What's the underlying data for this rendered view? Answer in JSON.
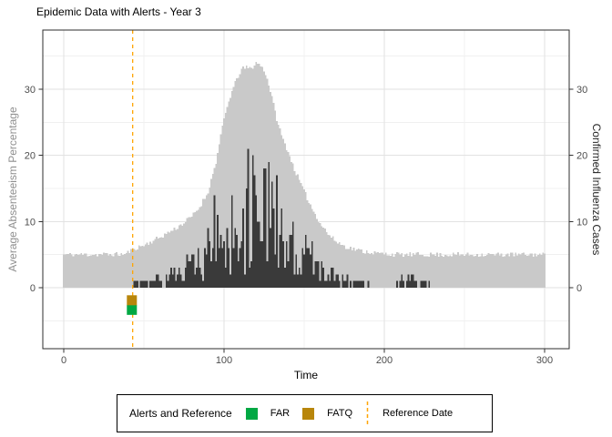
{
  "title": "Epidemic Data with Alerts - Year 3",
  "axes": {
    "x": {
      "title": "Time",
      "major_ticks": [
        0,
        100,
        200,
        300
      ],
      "minor_ticks": [
        50,
        150,
        250
      ]
    },
    "y_left": {
      "title": "Average Absenteeism Percentage",
      "major_ticks": [
        0,
        10,
        20,
        30
      ],
      "minor_ticks": [
        -5,
        5,
        15,
        25,
        35
      ],
      "title_color": "#8f8f8f"
    },
    "y_right": {
      "title": "Confirmed Influenza Cases",
      "major_ticks": [
        0,
        10,
        20,
        30
      ],
      "title_color": "#262626"
    }
  },
  "legend": {
    "title": "Alerts and Reference",
    "items": [
      {
        "label": "FAR",
        "key": "square",
        "color": "#00a843"
      },
      {
        "label": "FATQ",
        "key": "square",
        "color": "#b8860b"
      },
      {
        "label": "Reference Date",
        "key": "dashed-line",
        "color": "#ffa500"
      }
    ]
  },
  "chart_data": {
    "type": "bar",
    "title": "Epidemic Data with Alerts - Year 3",
    "xlabel": "Time",
    "ylabel_left": "Average Absenteeism Percentage",
    "ylabel_right": "Confirmed Influenza Cases",
    "x_range": [
      0,
      300
    ],
    "y_axis_ticks": [
      0,
      10,
      20,
      30
    ],
    "grid": true,
    "legend_position": "bottom",
    "seed": 11,
    "series": [
      {
        "name": "Average Absenteeism Percentage",
        "axis": "left",
        "style": "area-bars",
        "color": "#c9c9c9",
        "baseline_value": 5,
        "peak_value": 34,
        "peak_time": 120,
        "noise_amplitude": 0.35,
        "envelope": [
          [
            0,
            5
          ],
          [
            38,
            5.05
          ],
          [
            44,
            5.9
          ],
          [
            50,
            6.4
          ],
          [
            55,
            7.0
          ],
          [
            60,
            7.6
          ],
          [
            65,
            8.3
          ],
          [
            70,
            9.0
          ],
          [
            75,
            9.8
          ],
          [
            80,
            10.8
          ],
          [
            85,
            12.2
          ],
          [
            90,
            14.5
          ],
          [
            95,
            19
          ],
          [
            100,
            25.5
          ],
          [
            104,
            29
          ],
          [
            108,
            31.5
          ],
          [
            111,
            33
          ],
          [
            114,
            33.3
          ],
          [
            117,
            33.1
          ],
          [
            120,
            34
          ],
          [
            123,
            33.6
          ],
          [
            126,
            32.4
          ],
          [
            129,
            29.8
          ],
          [
            133,
            25.5
          ],
          [
            136,
            23
          ],
          [
            140,
            20.5
          ],
          [
            145,
            17.3
          ],
          [
            150,
            14.6
          ],
          [
            155,
            12
          ],
          [
            160,
            9.8
          ],
          [
            165,
            8.1
          ],
          [
            170,
            7.0
          ],
          [
            175,
            6.3
          ],
          [
            180,
            5.9
          ],
          [
            185,
            5.6
          ],
          [
            190,
            5.4
          ],
          [
            195,
            5.2
          ],
          [
            200,
            5.1
          ],
          [
            210,
            5
          ],
          [
            300,
            5
          ]
        ]
      },
      {
        "name": "Confirmed Influenza Cases",
        "axis": "right",
        "style": "bars",
        "color": "#3a3a3a",
        "peak_value": 21,
        "peak_time": 123,
        "noise_multiplier_range": [
          0.15,
          1.65
        ],
        "round_to_integer": true,
        "max_value": 21,
        "envelope": [
          [
            0,
            0
          ],
          [
            40,
            0
          ],
          [
            42,
            0.4
          ],
          [
            48,
            0.6
          ],
          [
            55,
            0.8
          ],
          [
            60,
            1.2
          ],
          [
            64,
            1.8
          ],
          [
            68,
            2.3
          ],
          [
            72,
            3.0
          ],
          [
            76,
            3.2
          ],
          [
            80,
            3.6
          ],
          [
            84,
            4.4
          ],
          [
            88,
            5.2
          ],
          [
            92,
            6.2
          ],
          [
            96,
            6.8
          ],
          [
            100,
            8.2
          ],
          [
            104,
            9.5
          ],
          [
            108,
            11
          ],
          [
            112,
            12.3
          ],
          [
            116,
            12.6
          ],
          [
            120,
            13.3
          ],
          [
            124,
            12.8
          ],
          [
            128,
            12
          ],
          [
            132,
            10.6
          ],
          [
            136,
            9.3
          ],
          [
            140,
            8.2
          ],
          [
            144,
            7.0
          ],
          [
            148,
            5.8
          ],
          [
            152,
            4.6
          ],
          [
            156,
            3.8
          ],
          [
            160,
            3.1
          ],
          [
            165,
            2.4
          ],
          [
            170,
            1.8
          ],
          [
            175,
            1.3
          ],
          [
            180,
            1.0
          ],
          [
            186,
            0.6
          ],
          [
            192,
            0.4
          ],
          [
            200,
            0.25
          ],
          [
            206,
            0.2
          ],
          [
            210,
            1.1
          ],
          [
            214,
            1.6
          ],
          [
            218,
            1.9
          ],
          [
            221,
            0.7
          ],
          [
            225,
            0.5
          ],
          [
            228,
            0.8
          ],
          [
            230,
            0
          ],
          [
            300,
            0
          ]
        ]
      }
    ],
    "alerts": [
      {
        "label": "FAR",
        "time": 42.5,
        "value": -3.35,
        "color": "#00a843",
        "shape": "square"
      },
      {
        "label": "FATQ",
        "time": 42.5,
        "value": -1.9,
        "color": "#b8860b",
        "shape": "square"
      }
    ],
    "reference_line": {
      "time": 43,
      "color": "#ffa500",
      "style": "dashed",
      "orientation": "vertical"
    }
  }
}
